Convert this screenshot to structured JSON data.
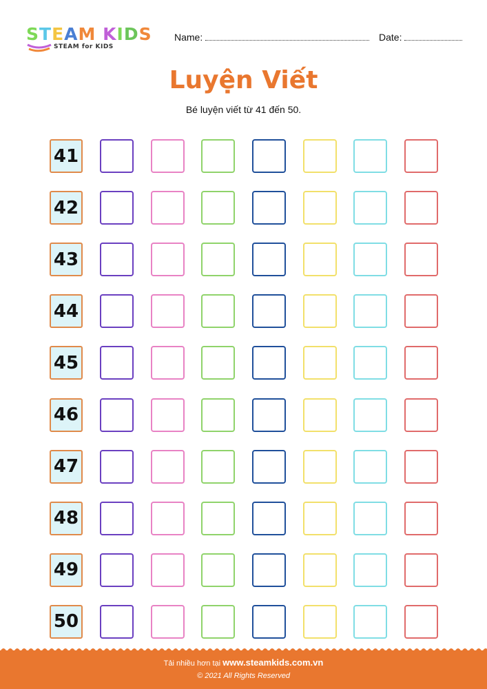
{
  "logo": {
    "letters": [
      "S",
      "T",
      "E",
      "A",
      "M",
      " ",
      "K",
      "I",
      "D",
      "S"
    ],
    "letter_colors": [
      "#7ed957",
      "#5cc8e8",
      "#f4c542",
      "#4a7fd4",
      "#f0883a",
      "#fff",
      "#c060d8",
      "#7ed957",
      "#6cc55a",
      "#f0883a"
    ],
    "tagline": "STEAM for KIDS"
  },
  "header": {
    "name_label": "Name:",
    "date_label": "Date:"
  },
  "title": "Luyện Viết",
  "subtitle": "Bé luyện viết từ 41 đến 50.",
  "colors": {
    "accent": "#e9772f",
    "number_box_bg": "#ddf4f8",
    "columns": [
      "#6a3fc0",
      "#e882c4",
      "#8fd36a",
      "#1f4f9a",
      "#f2e06a",
      "#7fdde4",
      "#e06a6a"
    ]
  },
  "rows": [
    "41",
    "42",
    "43",
    "44",
    "45",
    "46",
    "47",
    "48",
    "49",
    "50"
  ],
  "footer": {
    "prefix": "Tải nhiều hơn tại ",
    "url": "www.steamkids.com.vn",
    "copyright": "©  2021 All Rights Reserved"
  }
}
